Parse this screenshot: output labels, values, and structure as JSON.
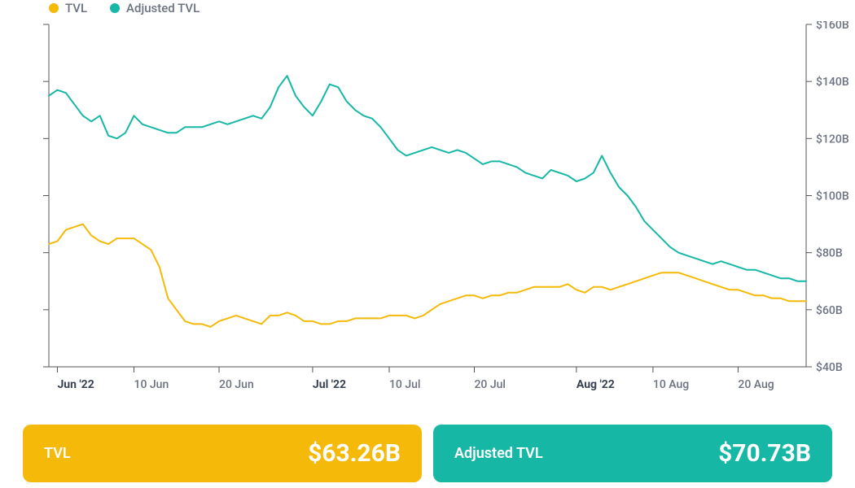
{
  "legend": {
    "items": [
      {
        "label": "TVL",
        "color": "#f5b909"
      },
      {
        "label": "Adjusted TVL",
        "color": "#16b8a5"
      }
    ]
  },
  "chart": {
    "type": "line",
    "background_color": "#ffffff",
    "axis_color": "#555555",
    "tick_color": "#555555",
    "label_color": "#6b7280",
    "label_fontsize": 14,
    "line_width": 2,
    "y_axis": {
      "min": 40,
      "max": 160,
      "ticks": [
        40,
        60,
        80,
        100,
        120,
        140,
        160
      ],
      "tick_labels": [
        "$40B",
        "$60B",
        "$80B",
        "$100B",
        "$120B",
        "$140B",
        "$160B"
      ]
    },
    "x_axis": {
      "min": 0,
      "max": 89,
      "ticks": [
        {
          "pos": 1,
          "label": "Jun '22",
          "bold": true
        },
        {
          "pos": 10,
          "label": "10 Jun",
          "bold": false
        },
        {
          "pos": 20,
          "label": "20 Jun",
          "bold": false
        },
        {
          "pos": 31,
          "label": "Jul '22",
          "bold": true
        },
        {
          "pos": 40,
          "label": "10 Jul",
          "bold": false
        },
        {
          "pos": 50,
          "label": "20 Jul",
          "bold": false
        },
        {
          "pos": 62,
          "label": "Aug '22",
          "bold": true
        },
        {
          "pos": 71,
          "label": "10 Aug",
          "bold": false
        },
        {
          "pos": 81,
          "label": "20 Aug",
          "bold": false
        }
      ]
    },
    "series": [
      {
        "name": "TVL",
        "color": "#f5b909",
        "values": [
          83,
          84,
          88,
          89,
          90,
          86,
          84,
          83,
          85,
          85,
          85,
          83,
          81,
          75,
          64,
          60,
          56,
          55,
          55,
          54,
          56,
          57,
          58,
          57,
          56,
          55,
          58,
          58,
          59,
          58,
          56,
          56,
          55,
          55,
          56,
          56,
          57,
          57,
          57,
          57,
          58,
          58,
          58,
          57,
          58,
          60,
          62,
          63,
          64,
          65,
          65,
          64,
          65,
          65,
          66,
          66,
          67,
          68,
          68,
          68,
          68,
          69,
          67,
          66,
          68,
          68,
          67,
          68,
          69,
          70,
          71,
          72,
          73,
          73,
          73,
          72,
          71,
          70,
          69,
          68,
          67,
          67,
          66,
          65,
          65,
          64,
          64,
          63,
          63,
          63
        ]
      },
      {
        "name": "Adjusted TVL",
        "color": "#16b8a5",
        "values": [
          135,
          137,
          136,
          132,
          128,
          126,
          128,
          121,
          120,
          122,
          128,
          125,
          124,
          123,
          122,
          122,
          124,
          124,
          124,
          125,
          126,
          125,
          126,
          127,
          128,
          127,
          131,
          138,
          142,
          135,
          131,
          128,
          133,
          139,
          138,
          133,
          130,
          128,
          127,
          124,
          120,
          116,
          114,
          115,
          116,
          117,
          116,
          115,
          116,
          115,
          113,
          111,
          112,
          112,
          111,
          110,
          108,
          107,
          106,
          109,
          108,
          107,
          105,
          106,
          108,
          114,
          108,
          103,
          100,
          96,
          91,
          88,
          85,
          82,
          80,
          79,
          78,
          77,
          76,
          77,
          76,
          75,
          74,
          74,
          73,
          72,
          71,
          71,
          70,
          70
        ]
      }
    ]
  },
  "cards": [
    {
      "label": "TVL",
      "value": "$63.26B",
      "bg": "#f5b909"
    },
    {
      "label": "Adjusted TVL",
      "value": "$70.73B",
      "bg": "#16b8a5"
    }
  ]
}
